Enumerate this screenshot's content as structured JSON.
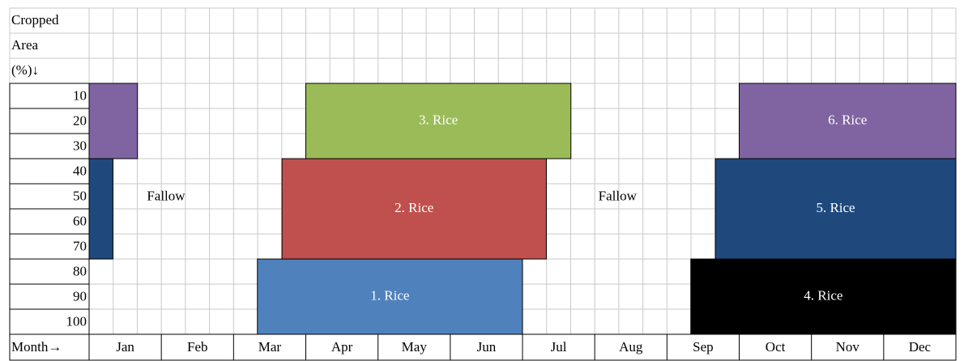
{
  "header": {
    "lines": [
      "Cropped",
      "Area",
      "(%)↓"
    ],
    "month_label": "Month→"
  },
  "area_rows": [
    10,
    20,
    30,
    40,
    50,
    60,
    70,
    80,
    90,
    100
  ],
  "months": [
    "Jan",
    "Feb",
    "Mar",
    "Apr",
    "May",
    "Jun",
    "Jul",
    "Aug",
    "Sep",
    "Oct",
    "Nov",
    "Dec"
  ],
  "blocks": [
    {
      "months": [
        0,
        0.67
      ],
      "area": [
        10,
        30
      ],
      "color": "#8064a2"
    },
    {
      "months": [
        0,
        0.33
      ],
      "area": [
        40,
        70
      ],
      "color": "#1f497d"
    },
    {
      "label": "3. Rice",
      "months": [
        3,
        6.67
      ],
      "area": [
        10,
        30
      ],
      "color": "#9bbb59"
    },
    {
      "label": "2. Rice",
      "months": [
        2.67,
        6.33
      ],
      "area": [
        40,
        70
      ],
      "color": "#c0504d"
    },
    {
      "label": "1. Rice",
      "months": [
        2.33,
        6
      ],
      "area": [
        80,
        100
      ],
      "color": "#4f81bd"
    },
    {
      "label": "4. Rice",
      "months": [
        8.33,
        12
      ],
      "area": [
        80,
        100
      ],
      "color": "#000000"
    },
    {
      "label": "5. Rice",
      "months": [
        8.67,
        12
      ],
      "area": [
        40,
        70
      ],
      "color": "#1f497d"
    },
    {
      "label": "6. Rice",
      "months": [
        9,
        12
      ],
      "area": [
        10,
        30
      ],
      "color": "#8064a2"
    }
  ],
  "annotations": [
    "Fallow",
    "Fallow"
  ]
}
